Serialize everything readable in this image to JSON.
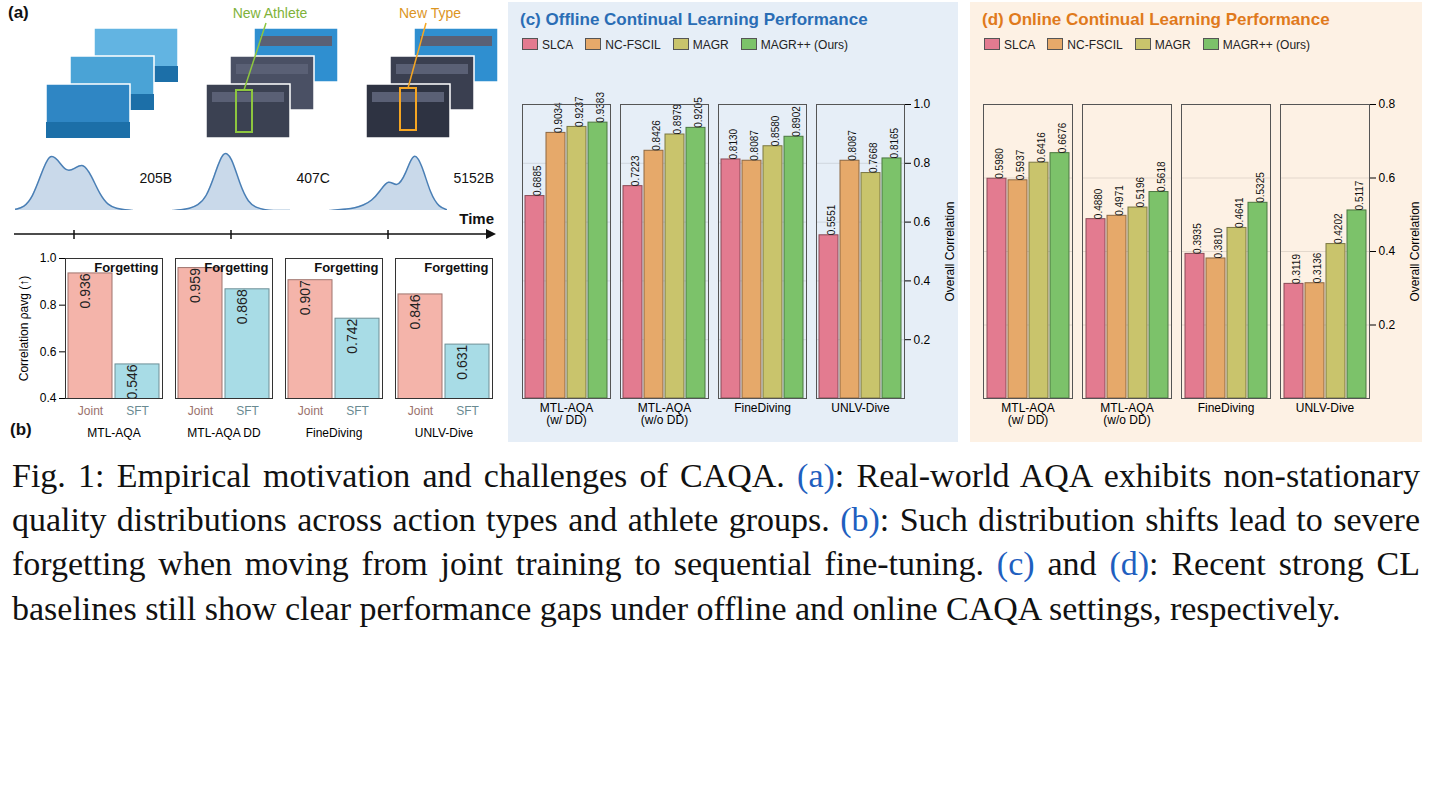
{
  "chart_data": [
    {
      "panel": "(a)",
      "type": "area",
      "annotations": [
        "New Athlete",
        "New Type"
      ],
      "x_label": "Time",
      "x": [
        0,
        1,
        2,
        3,
        4,
        5,
        6,
        7,
        8,
        9,
        10,
        11,
        12,
        13,
        14
      ],
      "xlim": [
        0,
        14
      ],
      "ylim": [
        0,
        1
      ],
      "tick_labels": false,
      "color": "#4a7fb5",
      "series": [
        {
          "name": "205B",
          "values": [
            0.02,
            0.05,
            0.2,
            0.55,
            0.9,
            0.8,
            0.6,
            0.65,
            0.75,
            0.55,
            0.25,
            0.08,
            0.03,
            0.01,
            0.0
          ]
        },
        {
          "name": "407C",
          "values": [
            0.0,
            0.01,
            0.03,
            0.08,
            0.2,
            0.55,
            0.95,
            0.85,
            0.4,
            0.12,
            0.04,
            0.01,
            0.0,
            0.0,
            0.0
          ]
        },
        {
          "name": "5152B",
          "values": [
            0.0,
            0.01,
            0.02,
            0.04,
            0.08,
            0.15,
            0.3,
            0.5,
            0.35,
            0.55,
            0.95,
            0.7,
            0.25,
            0.05,
            0.01
          ]
        }
      ]
    },
    {
      "panel": "(b)",
      "type": "bar",
      "title": "Forgetting",
      "y_label": "Correlation ρavg (↑)",
      "categories": [
        "MTL-AQA",
        "MTL-AQA DD",
        "FineDiving",
        "UNLV-Dive"
      ],
      "series": [
        {
          "name": "Joint",
          "color": "#f4b4aa",
          "values": [
            0.936,
            0.959,
            0.907,
            0.846
          ]
        },
        {
          "name": "SFT",
          "color": "#a8dce6",
          "values": [
            0.546,
            0.868,
            0.742,
            0.631
          ]
        }
      ],
      "ylim": [
        0.4,
        1.0
      ],
      "yticks": [
        0.4,
        0.6,
        0.8,
        {
          "value": 1,
          "label": "1.0"
        }
      ],
      "data_labels": true
    },
    {
      "panel": "(c)",
      "type": "bar",
      "title": "Offline Continual Learning Performance",
      "y_label": "Overall Correlation",
      "categories": [
        "MTL-AQA (w/ DD)",
        "MTL-AQA (w/o DD)",
        "FineDiving",
        "UNLV-Dive"
      ],
      "series": [
        {
          "name": "SLCA",
          "color": "#e37b90",
          "values": [
            0.6885,
            0.7223,
            0.813,
            0.5551
          ],
          "value_labels": [
            "0.6885",
            "0.7223",
            "0.8130",
            "0.5551"
          ]
        },
        {
          "name": "NC-FSCIL",
          "color": "#e6a96a",
          "values": [
            0.9034,
            0.8426,
            0.8087,
            0.8087
          ],
          "value_labels": [
            "0.9034",
            "0.8426",
            "0.8087",
            "0.8087"
          ]
        },
        {
          "name": "MAGR",
          "color": "#c9c46c",
          "values": [
            0.9237,
            0.8979,
            0.858,
            0.7668
          ],
          "value_labels": [
            "0.9237",
            "0.8979",
            "0.8580",
            "0.7668"
          ]
        },
        {
          "name": "MAGR++ (Ours)",
          "color": "#7cc26a",
          "values": [
            0.9383,
            0.9205,
            0.8902,
            0.8165
          ],
          "value_labels": [
            "0.9383",
            "0.9205",
            "0.8902",
            "0.8165"
          ]
        }
      ],
      "ylim": [
        0,
        1.0
      ],
      "yticks": [
        0.2,
        0.4,
        0.6,
        0.8,
        {
          "value": 1,
          "label": "1.0"
        }
      ],
      "data_labels": true,
      "legend": "top",
      "grid": true
    },
    {
      "panel": "(d)",
      "type": "bar",
      "title": "Online Continual Learning Performance",
      "y_label": "Overall Correlation",
      "categories": [
        "MTL-AQA (w/ DD)",
        "MTL-AQA (w/o DD)",
        "FineDiving",
        "UNLV-Dive"
      ],
      "series": [
        {
          "name": "SLCA",
          "color": "#e37b90",
          "values": [
            0.598,
            0.488,
            0.3935,
            0.3119
          ],
          "value_labels": [
            "0.5980",
            "0.4880",
            "0.3935",
            "0.3119"
          ]
        },
        {
          "name": "NC-FSCIL",
          "color": "#e6a96a",
          "values": [
            0.5937,
            0.4971,
            0.381,
            0.3136
          ],
          "value_labels": [
            "0.5937",
            "0.4971",
            "0.3810",
            "0.3136"
          ]
        },
        {
          "name": "MAGR",
          "color": "#c9c46c",
          "values": [
            0.6416,
            0.5196,
            0.4641,
            0.4202
          ],
          "value_labels": [
            "0.6416",
            "0.5196",
            "0.4641",
            "0.4202"
          ]
        },
        {
          "name": "MAGR++ (Ours)",
          "color": "#7cc26a",
          "values": [
            0.6676,
            0.5618,
            0.5325,
            0.5117
          ],
          "value_labels": [
            "0.6676",
            "0.5618",
            "0.5325",
            "0.5117"
          ]
        }
      ],
      "ylim": [
        0,
        0.8
      ],
      "yticks": [
        0.2,
        0.4,
        0.6,
        0.8
      ],
      "data_labels": true,
      "legend": "top",
      "grid": true
    }
  ],
  "caption": [
    {
      "text": "Fig. 1: Empirical motivation and challenges of CAQA. "
    },
    {
      "text": "(a)",
      "link": true
    },
    {
      "text": ": Real-world AQA exhibits non-stationary quality distributions across action types and athlete groups. "
    },
    {
      "text": "(b)",
      "link": true
    },
    {
      "text": ": Such distribution shifts lead to severe forgetting when moving from joint training to sequential fine-tuning. "
    },
    {
      "text": "(c)",
      "link": true
    },
    {
      "text": " and "
    },
    {
      "text": "(d)",
      "link": true
    },
    {
      "text": ": Recent strong CL baselines still show clear performance gaps under offline and online CAQA settings, respectively."
    }
  ]
}
